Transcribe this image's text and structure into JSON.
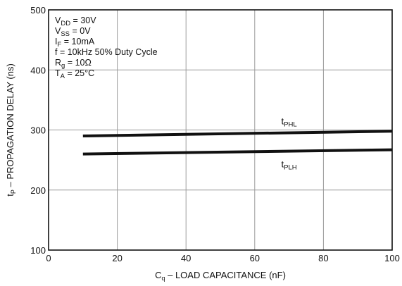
{
  "chart_data": {
    "type": "line",
    "title": "",
    "xlabel": {
      "main": "C",
      "sub": "q",
      "rest": " – LOAD CAPACITANCE (nF)"
    },
    "ylabel": {
      "main": "t",
      "sub": "P",
      "rest": " – PROPAGATION DELAY (ns)"
    },
    "xlim": [
      0,
      100
    ],
    "ylim": [
      100,
      500
    ],
    "xticks": [
      0,
      20,
      40,
      60,
      80,
      100
    ],
    "yticks": [
      100,
      200,
      300,
      400,
      500
    ],
    "grid": true,
    "conditions": [
      {
        "main": "V",
        "sub": "DD",
        "rest": " = 30V"
      },
      {
        "main": "V",
        "sub": "SS",
        "rest": " = 0V"
      },
      {
        "main": "I",
        "sub": "F",
        "rest": " = 10mA"
      },
      {
        "main": "f = 10kHz 50% Duty Cycle",
        "sub": "",
        "rest": ""
      },
      {
        "main": "R",
        "sub": "g",
        "rest": " = 10Ω"
      },
      {
        "main": "T",
        "sub": "A",
        "rest": " = 25°C"
      }
    ],
    "series": [
      {
        "name": {
          "main": "t",
          "sub": "PHL"
        },
        "x": [
          10,
          100
        ],
        "y": [
          290,
          298
        ],
        "label_x": 70,
        "label_pos": "above"
      },
      {
        "name": {
          "main": "t",
          "sub": "PLH"
        },
        "x": [
          10,
          100
        ],
        "y": [
          260,
          267
        ],
        "label_x": 70,
        "label_pos": "below"
      }
    ]
  }
}
